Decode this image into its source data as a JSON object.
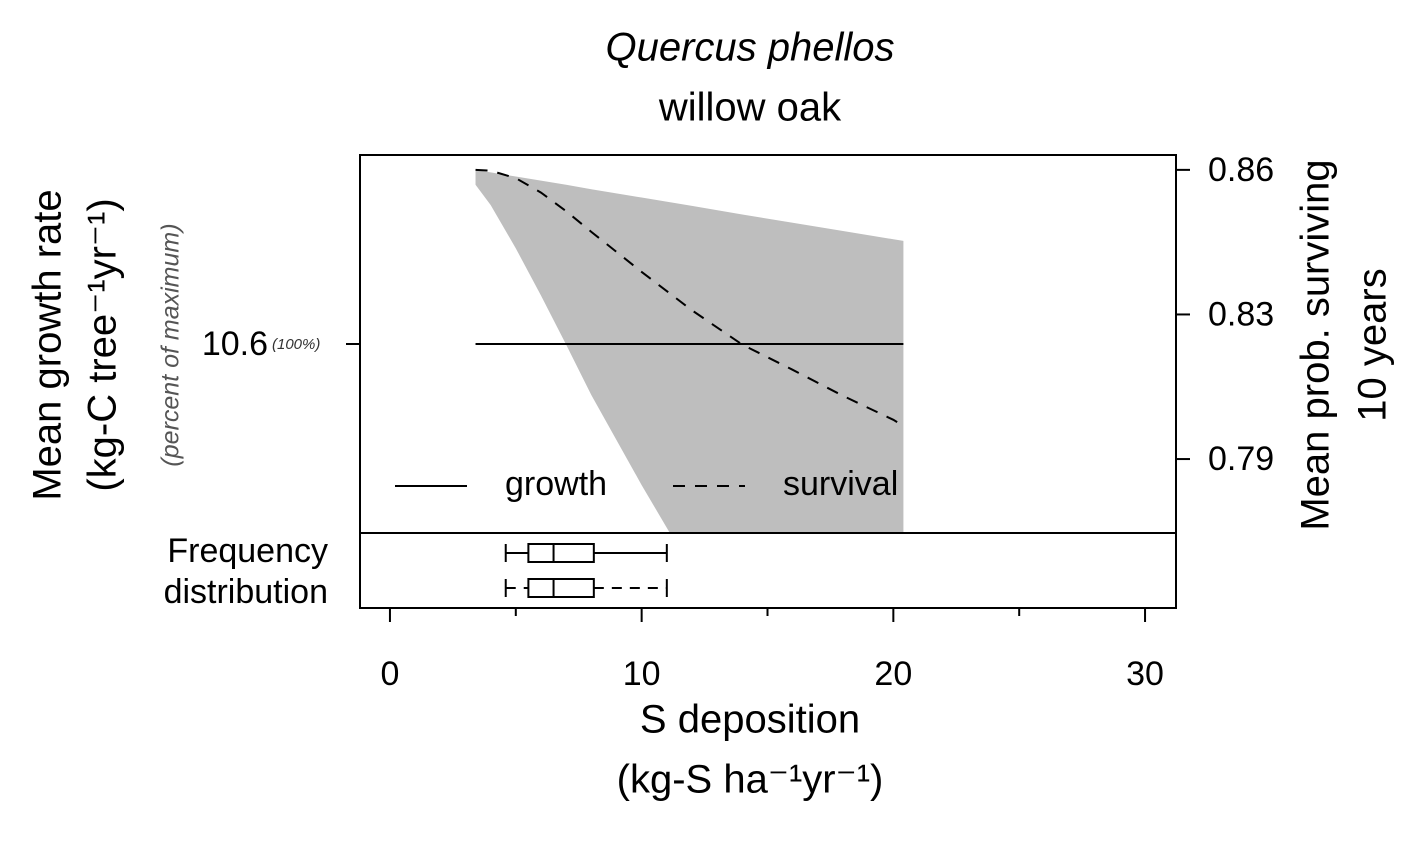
{
  "chart_data": {
    "type": "line",
    "title": "Quercus phellos",
    "subtitle": "willow oak",
    "ylabel": [
      "Mean growth rate",
      "(kg-C tree⁻¹yr⁻¹)"
    ],
    "ylabel_note": "(percent of maximum)",
    "y2label": [
      "Mean prob. surviving",
      "10 years"
    ],
    "xlabel": [
      "S deposition",
      "(kg-S ha⁻¹yr⁻¹)"
    ],
    "box_label": [
      "Frequency",
      "distribution"
    ],
    "xlim": [
      -1.19,
      31.23
    ],
    "xticks": [
      0,
      10,
      20,
      30
    ],
    "xminor_ticks": [
      5,
      15,
      25
    ],
    "ylim": [
      9.6,
      11.6
    ],
    "yticks": [
      10.6
    ],
    "ytick_notes": [
      "(100%)"
    ],
    "y2lim": [
      0.7721,
      0.8636
    ],
    "y2ticks": [
      0.86,
      {
        "value": 0.825,
        "label": "0.83"
      },
      0.79
    ],
    "legend": "bottom-left",
    "series": [
      {
        "name": "growth",
        "color": "#000000",
        "dashed": false,
        "axis": "y",
        "x": [
          3.4,
          20.4
        ],
        "values": [
          10.6,
          10.6
        ]
      },
      {
        "name": "survival",
        "color": "#000000",
        "dashed": true,
        "axis": "y2",
        "x": [
          3.4,
          4,
          5,
          6,
          7,
          8,
          10,
          12,
          14,
          16,
          18,
          20,
          20.4
        ],
        "values": [
          0.86,
          0.8598,
          0.858,
          0.8545,
          0.85,
          0.845,
          0.8353,
          0.826,
          0.8177,
          0.8116,
          0.8053,
          0.7995,
          0.798
        ],
        "band_color": "#bebebe",
        "band_upper": [
          0.86,
          0.8594,
          0.8584,
          0.8574,
          0.8564,
          0.8553,
          0.8533,
          0.8513,
          0.8492,
          0.8472,
          0.8452,
          0.8432,
          0.8428
        ],
        "band_lower": [
          0.8564,
          0.8515,
          0.841,
          0.8296,
          0.8177,
          0.8055,
          0.7837,
          0.763,
          0.748,
          0.735,
          0.724,
          0.715,
          0.713
        ]
      }
    ],
    "boxplots": [
      {
        "dashed": false,
        "whisker_low": 4.6,
        "q1": 5.5,
        "median": 6.5,
        "q3": 8.1,
        "whisker_high": 11.0
      },
      {
        "dashed": true,
        "whisker_low": 4.6,
        "q1": 5.5,
        "median": 6.5,
        "q3": 8.1,
        "whisker_high": 11.0
      }
    ]
  }
}
